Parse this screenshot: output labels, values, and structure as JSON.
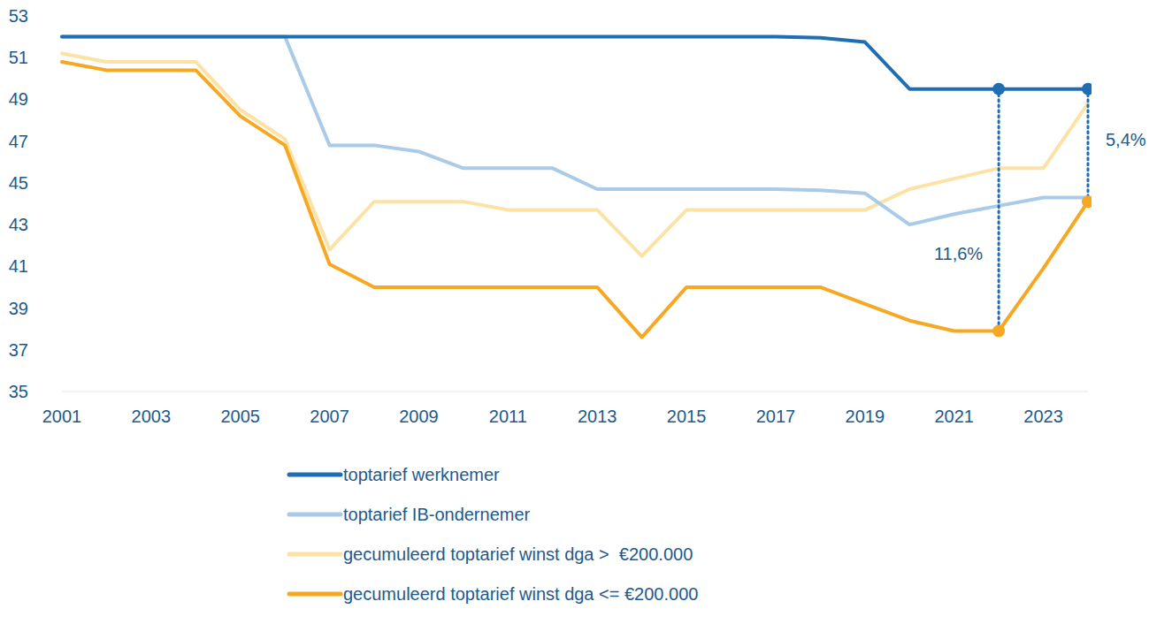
{
  "chart_data": {
    "type": "line",
    "x": [
      2001,
      2002,
      2003,
      2004,
      2005,
      2006,
      2007,
      2008,
      2009,
      2010,
      2011,
      2012,
      2013,
      2014,
      2015,
      2016,
      2017,
      2018,
      2019,
      2020,
      2021,
      2022,
      2023,
      2024
    ],
    "xlim": [
      2001,
      2024
    ],
    "xticks": [
      2001,
      2003,
      2005,
      2007,
      2009,
      2011,
      2013,
      2015,
      2017,
      2019,
      2021,
      2023
    ],
    "ylim": [
      35,
      53
    ],
    "yticks": [
      35,
      37,
      39,
      41,
      43,
      45,
      47,
      49,
      51,
      53
    ],
    "grid": false,
    "legend": "bottom",
    "series": [
      {
        "name": "toptarief werknemer",
        "color": "#1f6db3",
        "values": [
          52,
          52,
          52,
          52,
          52,
          52,
          52,
          52,
          52,
          52,
          52,
          52,
          52,
          52,
          52,
          52,
          52,
          51.95,
          51.75,
          49.5,
          49.5,
          49.5,
          49.5,
          49.5
        ]
      },
      {
        "name": "toptarief IB-ondernemer",
        "color": "#a9cbe8",
        "values": [
          52,
          52,
          52,
          52,
          52,
          52,
          46.8,
          46.8,
          46.5,
          45.7,
          45.7,
          45.7,
          44.7,
          44.7,
          44.7,
          44.7,
          44.7,
          44.65,
          44.5,
          43.0,
          43.5,
          43.9,
          44.3,
          44.3
        ]
      },
      {
        "name": "gecumuleerd toptarief winst dga >  €200.000",
        "color": "#fde2a6",
        "values": [
          51.2,
          50.8,
          50.8,
          50.8,
          48.5,
          47.1,
          41.8,
          44.1,
          44.1,
          44.1,
          43.7,
          43.7,
          43.7,
          41.5,
          43.7,
          43.7,
          43.7,
          43.7,
          43.7,
          44.7,
          45.2,
          45.7,
          45.7,
          48.8
        ]
      },
      {
        "name": "gecumuleerd toptarief winst dga <= €200.000",
        "color": "#f7a823",
        "values": [
          50.8,
          50.4,
          50.4,
          50.4,
          48.2,
          46.8,
          41.1,
          40.0,
          40.0,
          40.0,
          40.0,
          40.0,
          40.0,
          37.6,
          40.0,
          40.0,
          40.0,
          40.0,
          39.2,
          38.4,
          37.9,
          37.9,
          40.9,
          44.1
        ]
      }
    ],
    "annotations": [
      {
        "text": "11,6%",
        "x": 2022,
        "y1": 49.5,
        "y2": 37.9
      },
      {
        "text": "5,4%",
        "x": 2024,
        "y1": 49.5,
        "y2": 44.1
      }
    ]
  }
}
